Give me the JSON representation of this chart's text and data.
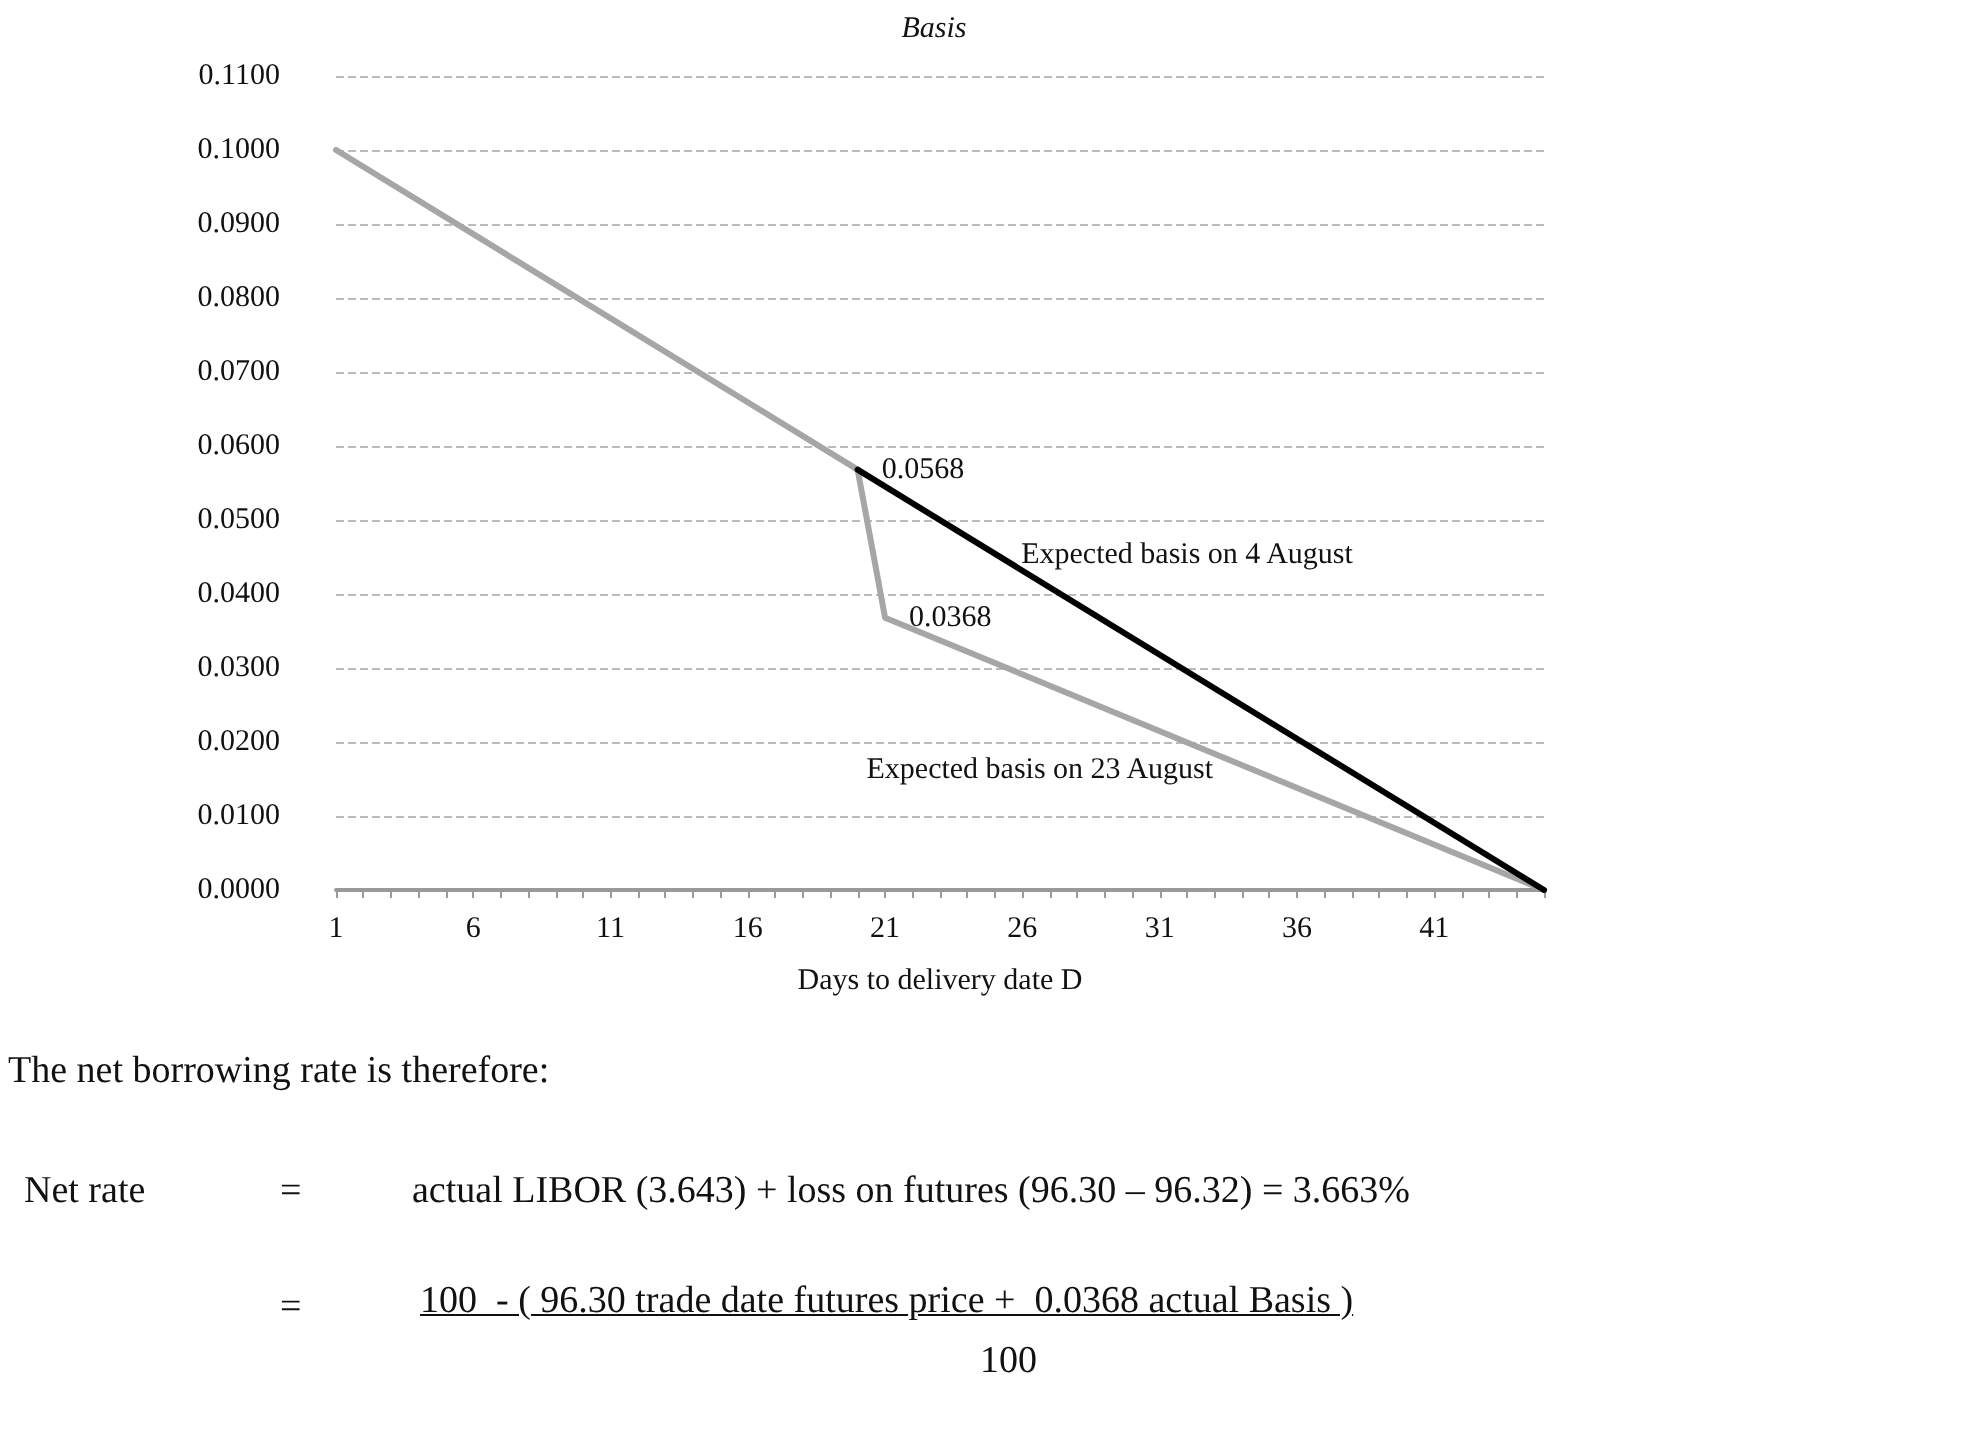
{
  "chart_data": {
    "type": "line",
    "title": "Basis",
    "xlabel": "Days to delivery date D",
    "xlim": [
      1,
      45
    ],
    "xticks": [
      1,
      6,
      11,
      16,
      21,
      26,
      31,
      36,
      41
    ],
    "ylim": [
      0,
      0.11
    ],
    "yticks": [
      {
        "value": 0,
        "label": "0.0000"
      },
      {
        "value": 0.01,
        "label": "0.0100"
      },
      {
        "value": 0.02,
        "label": "0.0200"
      },
      {
        "value": 0.03,
        "label": "0.0300"
      },
      {
        "value": 0.04,
        "label": "0.0400"
      },
      {
        "value": 0.05,
        "label": "0.0500"
      },
      {
        "value": 0.06,
        "label": "0.0600"
      },
      {
        "value": 0.07,
        "label": "0.0700"
      },
      {
        "value": 0.08,
        "label": "0.0800"
      },
      {
        "value": 0.09,
        "label": "0.0900"
      },
      {
        "value": 0.1,
        "label": "0.1000"
      },
      {
        "value": 0.11,
        "label": "0.1100"
      }
    ],
    "grid": "y",
    "legend": false,
    "marker": "none",
    "line_style": "solid",
    "series": [
      {
        "name": "Expected basis on 4 August",
        "color": "#000000",
        "x": [
          20,
          45
        ],
        "values": [
          0.0568,
          0
        ]
      },
      {
        "name": "Expected basis on 23 August",
        "color": "#a6a6a6",
        "x": [
          1,
          20,
          21,
          45
        ],
        "values": [
          0.1,
          0.0568,
          0.0368,
          0
        ]
      }
    ],
    "annotations": [
      {
        "text": "0.0568",
        "x": 20,
        "y": 0.0568
      },
      {
        "text": "0.0368",
        "x": 21,
        "y": 0.0368
      },
      "The net borrowing rate is therefore:",
      "Net rate",
      "=",
      "actual LIBOR (3.643) + loss on futures (96.30 – 96.32) = 3.663%",
      "=",
      "100  - ( 96.30 trade date futures price +  0.0368 actual Basis )",
      "100"
    ]
  }
}
